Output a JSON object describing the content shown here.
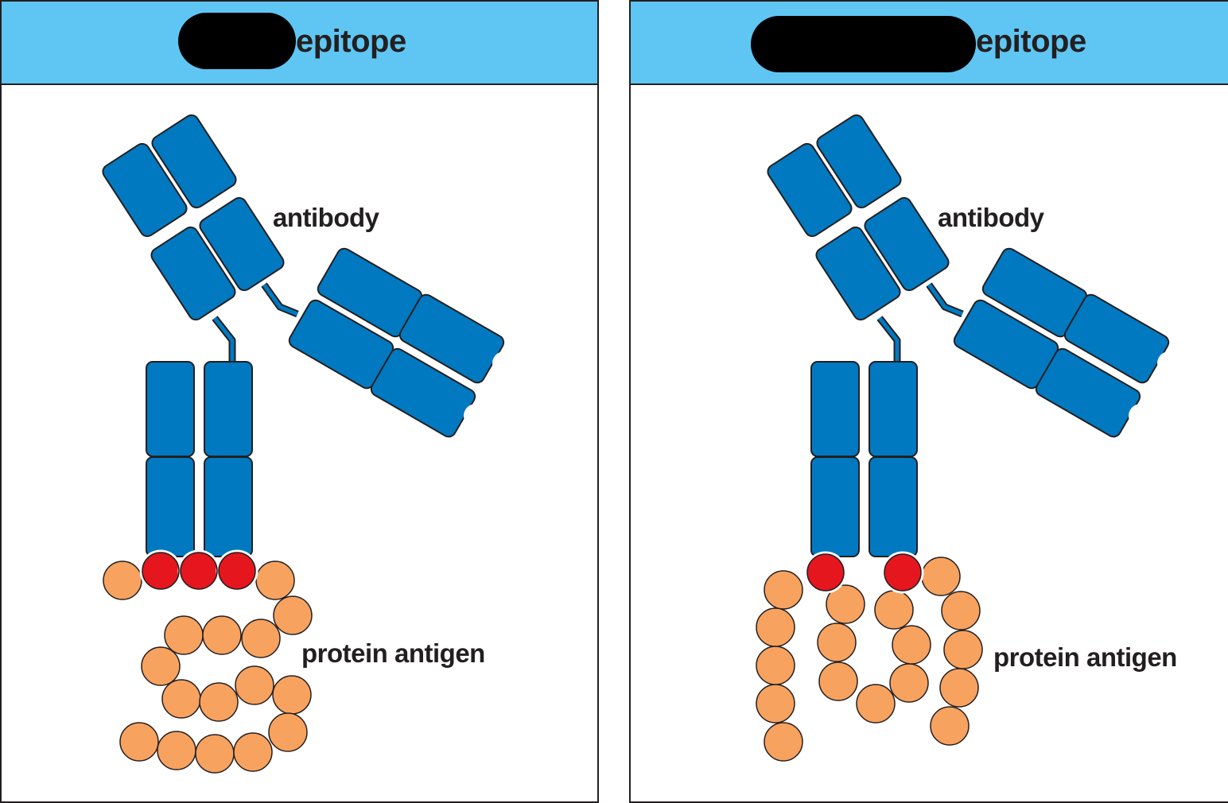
{
  "colors": {
    "header": "#5fc6f3",
    "antibody": "#0079c1",
    "epitope_residue": "#e5161e",
    "antigen_residue": "#f7a25f",
    "outline": "#231f20"
  },
  "panels": [
    {
      "header": {
        "title": "epitope"
      },
      "labels": {
        "antibody": "antibody",
        "antigen": "protein antigen"
      }
    },
    {
      "header": {
        "title": "epitope"
      },
      "labels": {
        "antibody": "antibody",
        "antigen": "protein antigen"
      }
    }
  ]
}
